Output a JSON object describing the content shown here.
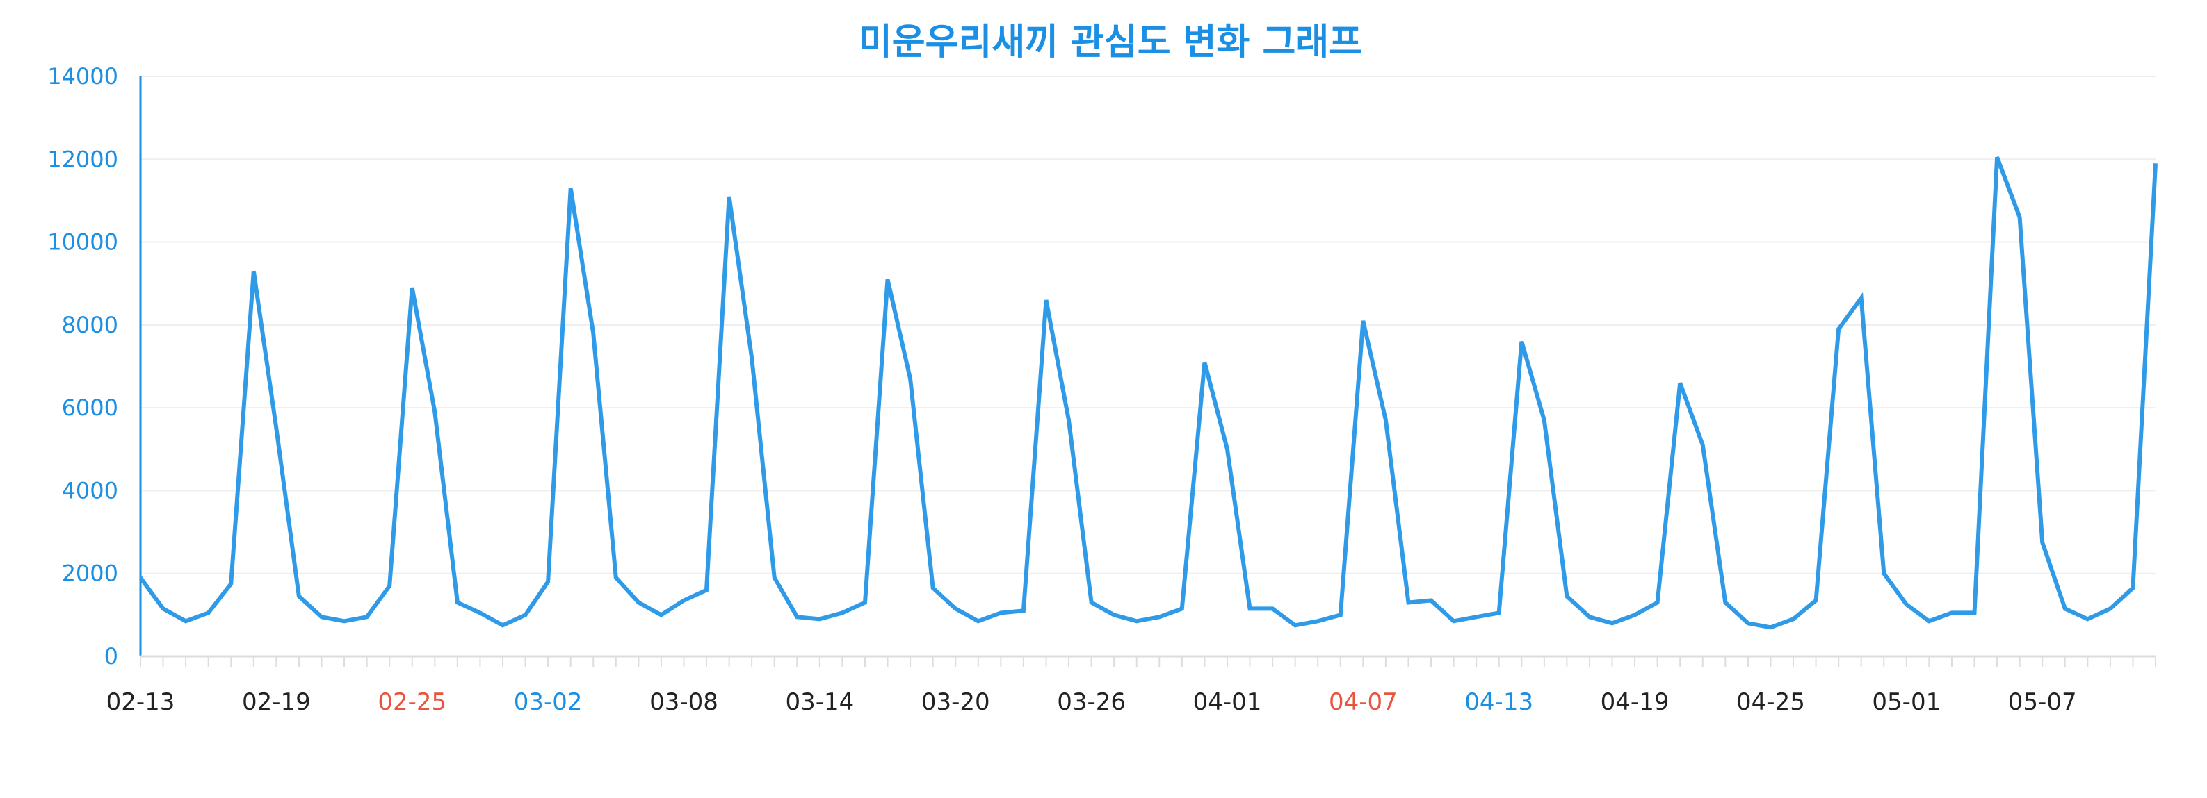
{
  "chart_data": {
    "type": "line",
    "title": "미운우리새끼 관심도 변화 그래프",
    "xlabel": "",
    "ylabel": "",
    "ylim": [
      0,
      14000
    ],
    "yticks": [
      0,
      2000,
      4000,
      6000,
      8000,
      10000,
      12000,
      14000
    ],
    "grid": true,
    "x_start": "02-13",
    "x_tick_labels": [
      {
        "label": "02-13",
        "color": "#222222"
      },
      {
        "label": "02-19",
        "color": "#222222"
      },
      {
        "label": "02-25",
        "color": "#e8553e"
      },
      {
        "label": "03-02",
        "color": "#1a8fe3"
      },
      {
        "label": "03-08",
        "color": "#222222"
      },
      {
        "label": "03-14",
        "color": "#222222"
      },
      {
        "label": "03-20",
        "color": "#222222"
      },
      {
        "label": "03-26",
        "color": "#222222"
      },
      {
        "label": "04-01",
        "color": "#222222"
      },
      {
        "label": "04-07",
        "color": "#e8553e"
      },
      {
        "label": "04-13",
        "color": "#1a8fe3"
      },
      {
        "label": "04-19",
        "color": "#222222"
      },
      {
        "label": "04-25",
        "color": "#222222"
      },
      {
        "label": "05-01",
        "color": "#222222"
      },
      {
        "label": "05-07",
        "color": "#222222"
      }
    ],
    "series": [
      {
        "color": "#2f9be8",
        "values": [
          1900,
          1150,
          850,
          1050,
          1750,
          9300,
          5500,
          1450,
          950,
          850,
          950,
          1700,
          8900,
          5900,
          1300,
          1050,
          750,
          1000,
          1800,
          11300,
          7800,
          1900,
          1300,
          1000,
          1350,
          1600,
          11100,
          7200,
          1900,
          950,
          900,
          1050,
          1300,
          9100,
          6700,
          1650,
          1150,
          850,
          1050,
          1100,
          8600,
          5700,
          1300,
          1000,
          850,
          950,
          1150,
          7100,
          5000,
          1150,
          1150,
          750,
          850,
          1000,
          8100,
          5700,
          1300,
          1350,
          850,
          950,
          1050,
          7600,
          5700,
          1450,
          950,
          800,
          1000,
          1300,
          6600,
          5100,
          1300,
          800,
          700,
          900,
          1350,
          7900,
          8650,
          2000,
          1250,
          850,
          1050,
          1050,
          12050,
          10600,
          2750,
          1150,
          900,
          1150,
          1650,
          11900
        ]
      }
    ]
  }
}
